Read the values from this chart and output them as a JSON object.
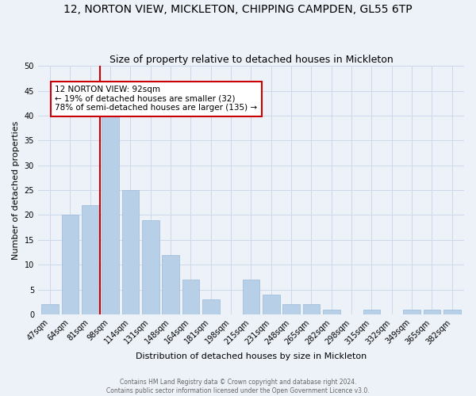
{
  "title": "12, NORTON VIEW, MICKLETON, CHIPPING CAMPDEN, GL55 6TP",
  "subtitle": "Size of property relative to detached houses in Mickleton",
  "xlabel": "Distribution of detached houses by size in Mickleton",
  "ylabel": "Number of detached properties",
  "footer_line1": "Contains HM Land Registry data © Crown copyright and database right 2024.",
  "footer_line2": "Contains public sector information licensed under the Open Government Licence v3.0.",
  "bar_labels": [
    "47sqm",
    "64sqm",
    "81sqm",
    "98sqm",
    "114sqm",
    "131sqm",
    "148sqm",
    "164sqm",
    "181sqm",
    "198sqm",
    "215sqm",
    "231sqm",
    "248sqm",
    "265sqm",
    "282sqm",
    "298sqm",
    "315sqm",
    "332sqm",
    "349sqm",
    "365sqm",
    "382sqm"
  ],
  "bar_values": [
    2,
    20,
    22,
    41,
    25,
    19,
    12,
    7,
    3,
    0,
    7,
    4,
    2,
    2,
    1,
    0,
    1,
    0,
    1,
    1,
    1
  ],
  "bar_color": "#b8cfe8",
  "bar_edge_color": "#9ab8d8",
  "marker_color": "#cc0000",
  "annotation_text": "12 NORTON VIEW: 92sqm\n← 19% of detached houses are smaller (32)\n78% of semi-detached houses are larger (135) →",
  "annotation_box_color": "#ffffff",
  "annotation_box_edge_color": "#cc0000",
  "ylim": [
    0,
    50
  ],
  "yticks": [
    0,
    5,
    10,
    15,
    20,
    25,
    30,
    35,
    40,
    45,
    50
  ],
  "grid_color": "#ccd8ec",
  "bg_color": "#edf2f9",
  "title_fontsize": 10,
  "subtitle_fontsize": 9,
  "axis_label_fontsize": 8,
  "tick_fontsize": 7,
  "annotation_fontsize": 7.5,
  "footer_fontsize": 5.5,
  "footer_color": "#666666"
}
